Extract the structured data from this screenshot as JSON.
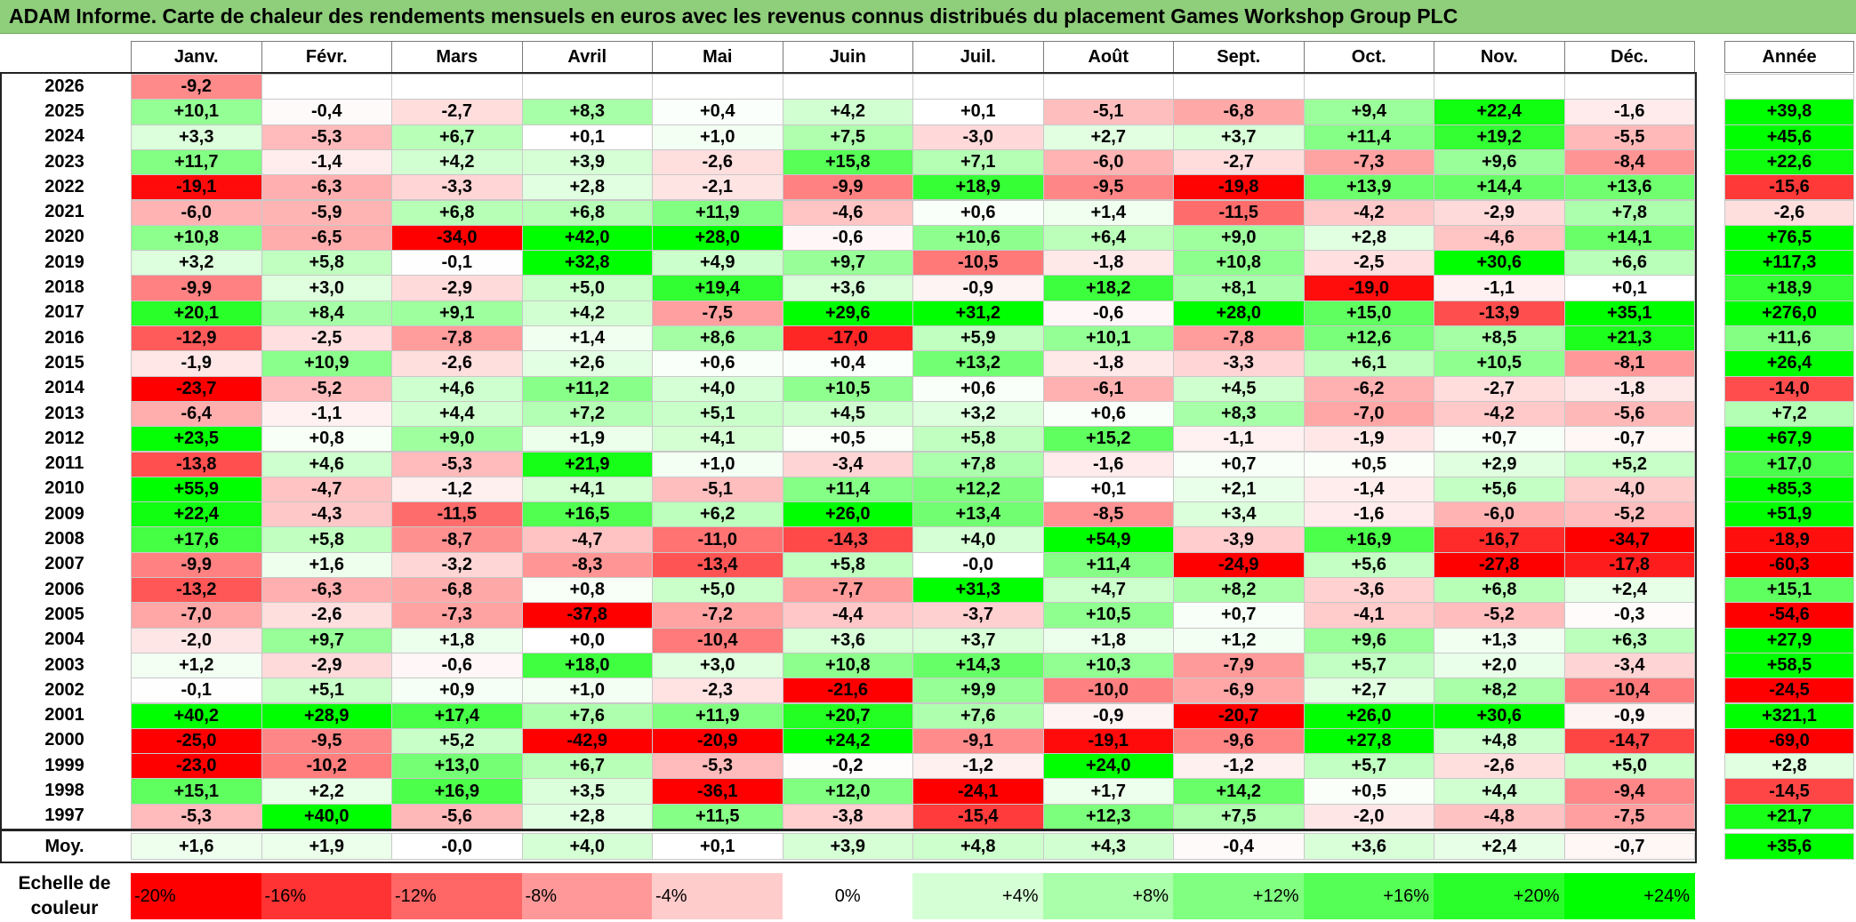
{
  "title": "ADAM Informe. Carte de chaleur des rendements mensuels en euros avec les revenus connus distribués du placement Games Workshop Group PLC",
  "chart_data": {
    "type": "heatmap",
    "title": "ADAM Informe. Carte de chaleur des rendements mensuels en euros avec les revenus connus distribués du placement Games Workshop Group PLC",
    "months": [
      "Janv.",
      "Févr.",
      "Mars",
      "Avril",
      "Mai",
      "Juin",
      "Juil.",
      "Août",
      "Sept.",
      "Oct.",
      "Nov.",
      "Déc."
    ],
    "year_header": "Année",
    "rows": [
      {
        "year": "2026",
        "values": [
          -9.2,
          null,
          null,
          null,
          null,
          null,
          null,
          null,
          null,
          null,
          null,
          null
        ],
        "annual": null
      },
      {
        "year": "2025",
        "values": [
          10.1,
          -0.4,
          -2.7,
          8.3,
          0.4,
          4.2,
          0.1,
          -5.1,
          -6.8,
          9.4,
          22.4,
          -1.6
        ],
        "annual": 39.8
      },
      {
        "year": "2024",
        "values": [
          3.3,
          -5.3,
          6.7,
          0.1,
          1.0,
          7.5,
          -3.0,
          2.7,
          3.7,
          11.4,
          19.2,
          -5.5
        ],
        "annual": 45.6
      },
      {
        "year": "2023",
        "values": [
          11.7,
          -1.4,
          4.2,
          3.9,
          -2.6,
          15.8,
          7.1,
          -6.0,
          -2.7,
          -7.3,
          9.6,
          -8.4
        ],
        "annual": 22.6
      },
      {
        "year": "2022",
        "values": [
          -19.1,
          -6.3,
          -3.3,
          2.8,
          -2.1,
          -9.9,
          18.9,
          -9.5,
          -19.8,
          13.9,
          14.4,
          13.6
        ],
        "annual": -15.6
      },
      {
        "year": "2021",
        "values": [
          -6.0,
          -5.9,
          6.8,
          6.8,
          11.9,
          -4.6,
          0.6,
          1.4,
          -11.5,
          -4.2,
          -2.9,
          7.8
        ],
        "annual": -2.6
      },
      {
        "year": "2020",
        "values": [
          10.8,
          -6.5,
          -34.0,
          42.0,
          28.0,
          -0.6,
          10.6,
          6.4,
          9.0,
          2.8,
          -4.6,
          14.1
        ],
        "annual": 76.5
      },
      {
        "year": "2019",
        "values": [
          3.2,
          5.8,
          -0.1,
          32.8,
          4.9,
          9.7,
          -10.5,
          -1.8,
          10.8,
          -2.5,
          30.6,
          6.6
        ],
        "annual": 117.3
      },
      {
        "year": "2018",
        "values": [
          -9.9,
          3.0,
          -2.9,
          5.0,
          19.4,
          3.6,
          -0.9,
          18.2,
          8.1,
          -19.0,
          -1.1,
          0.1
        ],
        "annual": 18.9
      },
      {
        "year": "2017",
        "values": [
          20.1,
          8.4,
          9.1,
          4.2,
          -7.5,
          29.6,
          31.2,
          -0.6,
          28.0,
          15.0,
          -13.9,
          35.1
        ],
        "annual": 276.0
      },
      {
        "year": "2016",
        "values": [
          -12.9,
          -2.5,
          -7.8,
          1.4,
          8.6,
          -17.0,
          5.9,
          10.1,
          -7.8,
          12.6,
          8.5,
          21.3
        ],
        "annual": 11.6
      },
      {
        "year": "2015",
        "values": [
          -1.9,
          10.9,
          -2.6,
          2.6,
          0.6,
          0.4,
          13.2,
          -1.8,
          -3.3,
          6.1,
          10.5,
          -8.1
        ],
        "annual": 26.4
      },
      {
        "year": "2014",
        "values": [
          -23.7,
          -5.2,
          4.6,
          11.2,
          4.0,
          10.5,
          0.6,
          -6.1,
          4.5,
          -6.2,
          -2.7,
          -1.8
        ],
        "annual": -14.0
      },
      {
        "year": "2013",
        "values": [
          -6.4,
          -1.1,
          4.4,
          7.2,
          5.1,
          4.5,
          3.2,
          0.6,
          8.3,
          -7.0,
          -4.2,
          -5.6
        ],
        "annual": 7.2
      },
      {
        "year": "2012",
        "values": [
          23.5,
          0.8,
          9.0,
          1.9,
          4.1,
          0.5,
          5.8,
          15.2,
          -1.1,
          -1.9,
          0.7,
          -0.7
        ],
        "annual": 67.9
      },
      {
        "year": "2011",
        "values": [
          -13.8,
          4.6,
          -5.3,
          21.9,
          1.0,
          -3.4,
          7.8,
          -1.6,
          0.7,
          0.5,
          2.9,
          5.2
        ],
        "annual": 17.0
      },
      {
        "year": "2010",
        "values": [
          55.9,
          -4.7,
          -1.2,
          4.1,
          -5.1,
          11.4,
          12.2,
          0.1,
          2.1,
          -1.4,
          5.6,
          -4.0
        ],
        "annual": 85.3
      },
      {
        "year": "2009",
        "values": [
          22.4,
          -4.3,
          -11.5,
          16.5,
          6.2,
          26.0,
          13.4,
          -8.5,
          3.4,
          -1.6,
          -6.0,
          -5.2
        ],
        "annual": 51.9
      },
      {
        "year": "2008",
        "values": [
          17.6,
          5.8,
          -8.7,
          -4.7,
          -11.0,
          -14.3,
          4.0,
          54.9,
          -3.9,
          16.9,
          -16.7,
          -34.7
        ],
        "annual": -18.9
      },
      {
        "year": "2007",
        "values": [
          -9.9,
          1.6,
          -3.2,
          -8.3,
          -13.4,
          5.8,
          -0.0,
          11.4,
          -24.9,
          5.6,
          -27.8,
          -17.8
        ],
        "annual": -60.3
      },
      {
        "year": "2006",
        "values": [
          -13.2,
          -6.3,
          -6.8,
          0.8,
          5.0,
          -7.7,
          31.3,
          4.7,
          8.2,
          -3.6,
          6.8,
          2.4
        ],
        "annual": 15.1
      },
      {
        "year": "2005",
        "values": [
          -7.0,
          -2.6,
          -7.3,
          -37.8,
          -7.2,
          -4.4,
          -3.7,
          10.5,
          0.7,
          -4.1,
          -5.2,
          -0.3
        ],
        "annual": -54.6
      },
      {
        "year": "2004",
        "values": [
          -2.0,
          9.7,
          1.8,
          0.0,
          -10.4,
          3.6,
          3.7,
          1.8,
          1.2,
          9.6,
          1.3,
          6.3
        ],
        "annual": 27.9
      },
      {
        "year": "2003",
        "values": [
          1.2,
          -2.9,
          -0.6,
          18.0,
          3.0,
          10.8,
          14.3,
          10.3,
          -7.9,
          5.7,
          2.0,
          -3.4
        ],
        "annual": 58.5
      },
      {
        "year": "2002",
        "values": [
          -0.1,
          5.1,
          0.9,
          1.0,
          -2.3,
          -21.6,
          9.9,
          -10.0,
          -6.9,
          2.7,
          8.2,
          -10.4
        ],
        "annual": -24.5
      },
      {
        "year": "2001",
        "values": [
          40.2,
          28.9,
          17.4,
          7.6,
          11.9,
          20.7,
          7.6,
          -0.9,
          -20.7,
          26.0,
          30.6,
          -0.9
        ],
        "annual": 321.1
      },
      {
        "year": "2000",
        "values": [
          -25.0,
          -9.5,
          5.2,
          -42.9,
          -20.9,
          24.2,
          -9.1,
          -19.1,
          -9.6,
          27.8,
          4.8,
          -14.7
        ],
        "annual": -69.0
      },
      {
        "year": "1999",
        "values": [
          -23.0,
          -10.2,
          13.0,
          6.7,
          -5.3,
          -0.2,
          -1.2,
          24.0,
          -1.2,
          5.7,
          -2.6,
          5.0
        ],
        "annual": 2.8
      },
      {
        "year": "1998",
        "values": [
          15.1,
          2.2,
          16.9,
          3.5,
          -36.1,
          12.0,
          -24.1,
          1.7,
          14.2,
          0.5,
          4.4,
          -9.4
        ],
        "annual": -14.5
      },
      {
        "year": "1997",
        "values": [
          -5.3,
          40.0,
          -5.6,
          2.8,
          11.5,
          -3.8,
          -15.4,
          12.3,
          7.5,
          -2.0,
          -4.8,
          -7.5
        ],
        "annual": 21.7
      }
    ],
    "average": {
      "label": "Moy.",
      "values": [
        1.6,
        1.9,
        -0.0,
        4.0,
        0.1,
        3.9,
        4.8,
        4.3,
        -0.4,
        3.6,
        2.4,
        -0.7
      ],
      "annual": 35.6
    },
    "scale": {
      "label_line1": "Echelle de",
      "label_line2": "couleur",
      "labels": [
        "-20%",
        "-16%",
        "-12%",
        "-8%",
        "-4%",
        "0%",
        "+4%",
        "+8%",
        "+12%",
        "+16%",
        "+20%",
        "+24%"
      ],
      "values": [
        -20,
        -16,
        -12,
        -8,
        -4,
        0,
        4,
        8,
        12,
        16,
        20,
        24
      ]
    },
    "colors": {
      "negative_max": "#ff0000",
      "neutral": "#ffffff",
      "positive_max": "#00ff00"
    }
  }
}
